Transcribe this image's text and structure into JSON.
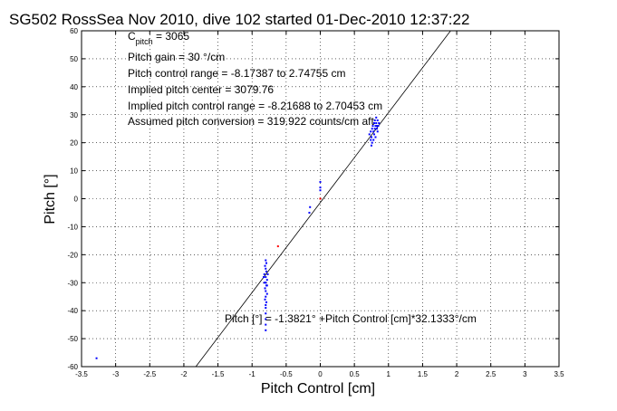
{
  "chart_data": {
    "type": "scatter",
    "title": "SG502 RossSea Nov 2010, dive 102 started 01-Dec-2010 12:37:22",
    "xlabel": "Pitch Control [cm]",
    "ylabel": "Pitch [°]",
    "xlim": [
      -3.5,
      3.5
    ],
    "ylim": [
      -60,
      60
    ],
    "xticks": [
      "-3.5",
      "-3",
      "-2.5",
      "-2",
      "-1.5",
      "-1",
      "-0.5",
      "0",
      "0.5",
      "1",
      "1.5",
      "2",
      "2.5",
      "3",
      "3.5"
    ],
    "yticks": [
      "60",
      "50",
      "40",
      "30",
      "20",
      "10",
      "0",
      "-10",
      "-20",
      "-30",
      "-40",
      "-50",
      "-60"
    ],
    "grid": true,
    "annotations": {
      "c_pitch_main": "C",
      "c_pitch_sub": "pitch",
      "c_pitch_value": " = 3065",
      "line2": "Pitch gain = 30 °/cm",
      "line3": "Pitch control range = -8.17387 to 2.74755 cm",
      "line4": "Implied pitch center = 3079.76",
      "line5": "Implied pitch control range = -8.21688 to 2.70453 cm",
      "line6": "Assumed pitch conversion = 319.922 counts/cm aft",
      "fit_label": "Pitch [°] = -1.3821° +Pitch Control [cm]*32.1333°/cm"
    },
    "fit_line": {
      "intercept": -1.3821,
      "slope": 32.1333
    },
    "series": [
      {
        "color": "#0000ff",
        "points": [
          [
            0.72,
            23
          ],
          [
            0.74,
            24
          ],
          [
            0.75,
            22
          ],
          [
            0.76,
            25
          ],
          [
            0.77,
            26
          ],
          [
            0.78,
            24
          ],
          [
            0.79,
            27
          ],
          [
            0.8,
            25
          ],
          [
            0.8,
            28
          ],
          [
            0.81,
            26
          ],
          [
            0.82,
            27
          ],
          [
            0.83,
            25
          ],
          [
            0.84,
            28
          ],
          [
            0.85,
            26
          ],
          [
            0.86,
            27
          ],
          [
            0.78,
            21
          ],
          [
            0.76,
            20
          ],
          [
            0.75,
            19
          ],
          [
            0.82,
            29
          ],
          [
            0.84,
            24
          ],
          [
            0.79,
            23
          ],
          [
            0.81,
            22
          ],
          [
            0.74,
            21
          ],
          [
            0.83,
            26
          ],
          [
            -0.8,
            -22
          ],
          [
            -0.81,
            -24
          ],
          [
            -0.79,
            -26
          ],
          [
            -0.8,
            -28
          ],
          [
            -0.78,
            -29
          ],
          [
            -0.82,
            -27
          ],
          [
            -0.8,
            -30
          ],
          [
            -0.79,
            -31
          ],
          [
            -0.81,
            -32
          ],
          [
            -0.8,
            -33
          ],
          [
            -0.8,
            -35
          ],
          [
            -0.79,
            -37
          ],
          [
            -0.8,
            -39
          ],
          [
            -0.8,
            -41
          ],
          [
            -0.8,
            -43
          ],
          [
            -0.8,
            -45
          ],
          [
            -0.8,
            -47
          ],
          [
            -0.81,
            -36
          ],
          [
            -0.78,
            -34
          ],
          [
            -0.83,
            -28
          ],
          [
            -0.77,
            -27
          ],
          [
            -0.8,
            -25
          ],
          [
            -0.79,
            -23
          ],
          [
            -0.82,
            -30
          ],
          [
            -0.78,
            -31
          ],
          [
            -0.8,
            -38
          ],
          [
            -0.15,
            -3
          ],
          [
            -0.16,
            -5
          ],
          [
            0.0,
            6
          ],
          [
            0.0,
            4
          ],
          [
            0.0,
            3
          ],
          [
            -3.28,
            -57
          ]
        ]
      },
      {
        "color": "#ff0000",
        "points": [
          [
            0.0,
            0
          ],
          [
            -0.62,
            -17
          ]
        ]
      }
    ]
  }
}
